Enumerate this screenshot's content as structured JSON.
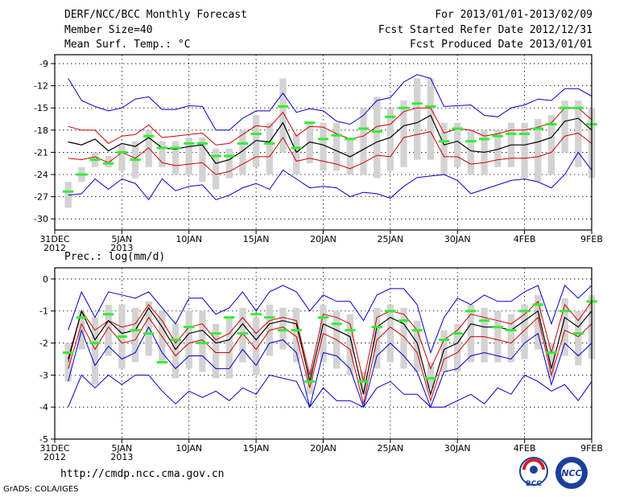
{
  "header": {
    "title": "DERF/NCC/BCC Monthly Forecast",
    "member": "Member Size=40",
    "variable": "Mean Surf. Temp.: °C",
    "period": "For 2013/01/01-2013/02/09",
    "started": "Fcst Started Refer Date 2012/12/31",
    "produced": "Fcst Produced Date 2013/01/01"
  },
  "footer": {
    "url": "http://cmdp.ncc.cma.gov.cn",
    "grads": "GrADS: COLA/IGES",
    "logo1": "BCC",
    "logo2": "NCC"
  },
  "colors": {
    "ensemble_mean": "#000000",
    "inner_band": "#cc0000",
    "outer_band": "#0000cc",
    "box": "#d3d3d3",
    "median": "#33ee33"
  },
  "chart_data": [
    {
      "type": "line",
      "title": "Mean Surf. Temp.: °C",
      "ylim": [
        -31.5,
        -7.8
      ],
      "yticks": [
        -9,
        -12,
        -15,
        -18,
        -21,
        -24,
        -27,
        -30
      ],
      "ytick_labels": [
        "-9",
        "-12",
        "-15",
        "-18",
        "-21",
        "-24",
        "-27",
        "-30"
      ],
      "xlim": [
        0,
        40
      ],
      "xticks": [
        0,
        5,
        10,
        15,
        20,
        25,
        30,
        35,
        40
      ],
      "xtick_labels": [
        "31DEC",
        "5JAN",
        "10JAN",
        "15JAN",
        "20JAN",
        "25JAN",
        "30JAN",
        "4FEB",
        "9FEB"
      ],
      "xtick_sublabels": [
        "2012",
        "2013",
        "",
        "",
        "",
        "",
        "",
        "",
        ""
      ],
      "x": [
        1,
        2,
        3,
        4,
        5,
        6,
        7,
        8,
        9,
        10,
        11,
        12,
        13,
        14,
        15,
        16,
        17,
        18,
        19,
        20,
        21,
        22,
        23,
        24,
        25,
        26,
        27,
        28,
        29,
        30,
        31,
        32,
        33,
        34,
        35,
        36,
        37,
        38,
        39,
        40
      ],
      "series": [
        {
          "name": "outer_high",
          "values": [
            -11.0,
            -14.0,
            -14.8,
            -15.4,
            -15.0,
            -13.8,
            -13.5,
            -15.2,
            -15.2,
            -14.7,
            -14.8,
            -18.0,
            -18.0,
            -16.4,
            -15.4,
            -15.4,
            -13.0,
            -15.6,
            -15.1,
            -15.4,
            -16.8,
            -17.2,
            -16.0,
            -14.0,
            -13.6,
            -11.5,
            -10.5,
            -11.0,
            -14.8,
            -14.7,
            -14.6,
            -16.0,
            -16.2,
            -15.0,
            -14.6,
            -13.8,
            -14.0,
            -12.4,
            -12.4,
            -13.4
          ]
        },
        {
          "name": "inner_high",
          "values": [
            -17.5,
            -18.0,
            -18.0,
            -19.8,
            -18.8,
            -18.6,
            -17.3,
            -19.0,
            -18.8,
            -18.6,
            -18.4,
            -20.0,
            -19.8,
            -18.6,
            -17.4,
            -17.6,
            -15.6,
            -18.8,
            -17.5,
            -17.6,
            -18.5,
            -19.2,
            -18.8,
            -17.5,
            -17.2,
            -15.5,
            -15.0,
            -15.0,
            -18.4,
            -17.8,
            -18.0,
            -18.8,
            -18.5,
            -18.0,
            -18.0,
            -17.6,
            -17.0,
            -15.0,
            -15.0,
            -16.6
          ]
        },
        {
          "name": "mean",
          "values": [
            -19.6,
            -20.0,
            -19.2,
            -20.8,
            -19.8,
            -20.2,
            -19.0,
            -20.4,
            -20.6,
            -20.2,
            -20.0,
            -22.5,
            -22.0,
            -20.8,
            -19.4,
            -19.6,
            -17.0,
            -21.0,
            -19.6,
            -20.0,
            -20.8,
            -21.6,
            -20.6,
            -19.6,
            -19.0,
            -17.4,
            -17.0,
            -16.0,
            -20.0,
            -19.5,
            -20.8,
            -21.0,
            -20.6,
            -20.0,
            -20.0,
            -19.6,
            -19.0,
            -16.8,
            -16.4,
            -18.0
          ]
        },
        {
          "name": "inner_low",
          "values": [
            -21.8,
            -22.0,
            -21.6,
            -22.4,
            -21.0,
            -21.8,
            -20.4,
            -22.4,
            -22.8,
            -22.6,
            -22.4,
            -24.0,
            -23.6,
            -22.6,
            -21.6,
            -21.6,
            -19.0,
            -22.2,
            -21.8,
            -22.2,
            -22.6,
            -23.2,
            -22.4,
            -21.4,
            -21.6,
            -19.0,
            -18.6,
            -18.2,
            -21.6,
            -21.6,
            -22.6,
            -22.4,
            -22.0,
            -21.8,
            -21.8,
            -21.6,
            -21.0,
            -18.8,
            -18.4,
            -19.8
          ]
        },
        {
          "name": "outer_low",
          "values": [
            -26.8,
            -26.6,
            -24.6,
            -26.0,
            -24.6,
            -25.2,
            -27.4,
            -24.6,
            -26.2,
            -25.6,
            -25.4,
            -27.4,
            -26.8,
            -25.8,
            -25.2,
            -26.0,
            -23.4,
            -24.6,
            -25.8,
            -25.6,
            -25.8,
            -27.0,
            -26.4,
            -26.6,
            -27.2,
            -25.6,
            -24.4,
            -24.2,
            -24.0,
            -24.8,
            -26.6,
            -26.0,
            -25.4,
            -24.8,
            -24.6,
            -25.0,
            -25.8,
            -24.0,
            -21.0,
            -23.4
          ]
        }
      ],
      "boxes": {
        "top": [
          -25.0,
          -23.0,
          -21.0,
          -21.5,
          -20.0,
          -19.5,
          -18.0,
          -19.5,
          -19.5,
          -19.0,
          -19.0,
          -20.5,
          -20.5,
          -18.0,
          -16.0,
          -17.0,
          -11.0,
          -18.5,
          -17.0,
          -17.0,
          -17.0,
          -19.0,
          -15.0,
          -13.5,
          -15.0,
          -14.0,
          -11.0,
          -11.0,
          -17.0,
          -17.0,
          -18.0,
          -18.0,
          -18.0,
          -17.0,
          -17.0,
          -16.5,
          -16.0,
          -14.0,
          -14.0,
          -15.0
        ],
        "bottom": [
          -28.5,
          -25.0,
          -23.0,
          -23.0,
          -23.5,
          -24.5,
          -23.0,
          -23.0,
          -24.0,
          -24.0,
          -25.0,
          -26.0,
          -24.5,
          -24.0,
          -23.0,
          -24.0,
          -21.0,
          -24.0,
          -22.5,
          -23.5,
          -23.5,
          -24.0,
          -24.0,
          -24.5,
          -23.5,
          -23.0,
          -22.0,
          -22.0,
          -24.0,
          -23.0,
          -24.0,
          -24.0,
          -23.0,
          -23.0,
          -24.5,
          -25.0,
          -24.0,
          -21.0,
          -23.0,
          -24.5
        ],
        "median": [
          -26.3,
          -24.0,
          -22.0,
          -22.5,
          -21.0,
          -22.0,
          -18.8,
          -20.4,
          -20.4,
          -19.8,
          -19.8,
          -21.5,
          -21.5,
          -19.8,
          -18.5,
          -19.8,
          -14.8,
          -20.4,
          -17.0,
          -19.2,
          -18.7,
          -19.2,
          -17.8,
          -18.2,
          -16.2,
          -15.0,
          -14.4,
          -14.8,
          -19.5,
          -17.8,
          -19.5,
          -19.2,
          -18.8,
          -18.5,
          -18.5,
          -17.8,
          -17.2,
          -15.0,
          -15.0,
          -17.2
        ]
      }
    },
    {
      "type": "line",
      "title": "Prec.: log(mm/d)",
      "ylim": [
        -5,
        0.35
      ],
      "yticks": [
        0,
        -1,
        -2,
        -3,
        -4,
        -5
      ],
      "ytick_labels": [
        "0",
        "-1",
        "-2",
        "-3",
        "-4",
        "-5"
      ],
      "xlim": [
        0,
        40
      ],
      "xticks": [
        0,
        5,
        10,
        15,
        20,
        25,
        30,
        35,
        40
      ],
      "xtick_labels": [
        "31DEC",
        "5JAN",
        "10JAN",
        "15JAN",
        "20JAN",
        "25JAN",
        "30JAN",
        "4FEB",
        "9FEB"
      ],
      "xtick_sublabels": [
        "2012",
        "2013",
        "",
        "",
        "",
        "",
        "",
        "",
        ""
      ],
      "x": [
        1,
        2,
        3,
        4,
        5,
        6,
        7,
        8,
        9,
        10,
        11,
        12,
        13,
        14,
        15,
        16,
        17,
        18,
        19,
        20,
        21,
        22,
        23,
        24,
        25,
        26,
        27,
        28,
        29,
        30,
        31,
        32,
        33,
        34,
        35,
        36,
        37,
        38,
        39,
        40
      ],
      "series": [
        {
          "name": "outer_high",
          "values": [
            -1.6,
            -0.4,
            -1.2,
            -0.4,
            -0.5,
            -0.6,
            -0.4,
            -0.9,
            -1.4,
            -0.6,
            -0.6,
            -1.1,
            -0.9,
            -0.4,
            -1.0,
            -0.4,
            -0.2,
            -0.4,
            -1.0,
            -0.5,
            -0.7,
            -0.7,
            -1.3,
            -0.5,
            -0.3,
            -0.3,
            -0.8,
            -2.3,
            -1.2,
            -0.6,
            -0.8,
            -0.5,
            -0.7,
            -0.7,
            -0.4,
            -0.2,
            -1.4,
            -0.2,
            -0.6,
            -0.2
          ]
        },
        {
          "name": "inner_high",
          "values": [
            -2.6,
            -1.0,
            -1.6,
            -1.3,
            -1.5,
            -1.4,
            -0.8,
            -1.3,
            -2.0,
            -1.5,
            -1.4,
            -1.9,
            -1.7,
            -1.2,
            -1.7,
            -1.3,
            -1.2,
            -1.3,
            -3.0,
            -1.1,
            -1.2,
            -1.4,
            -3.2,
            -1.2,
            -1.0,
            -1.1,
            -1.6,
            -2.8,
            -1.9,
            -1.6,
            -1.1,
            -1.2,
            -1.3,
            -1.4,
            -1.1,
            -0.7,
            -2.3,
            -0.8,
            -1.3,
            -0.7
          ]
        },
        {
          "name": "mean",
          "values": [
            -2.5,
            -1.0,
            -1.9,
            -1.3,
            -1.7,
            -1.6,
            -0.9,
            -1.5,
            -2.2,
            -1.7,
            -1.6,
            -2.0,
            -1.9,
            -1.4,
            -1.9,
            -1.4,
            -1.3,
            -1.4,
            -3.2,
            -1.4,
            -1.6,
            -1.8,
            -3.6,
            -1.5,
            -1.2,
            -1.4,
            -2.0,
            -3.6,
            -2.2,
            -2.0,
            -1.4,
            -1.5,
            -1.5,
            -1.6,
            -1.3,
            -1.0,
            -2.8,
            -1.2,
            -1.5,
            -1.0
          ]
        },
        {
          "name": "inner_low",
          "values": [
            -2.8,
            -1.4,
            -2.2,
            -1.5,
            -2.0,
            -1.9,
            -1.2,
            -1.8,
            -2.4,
            -2.0,
            -1.9,
            -2.3,
            -2.3,
            -1.7,
            -2.2,
            -1.6,
            -1.5,
            -1.8,
            -3.4,
            -1.7,
            -1.9,
            -2.2,
            -3.9,
            -1.9,
            -1.5,
            -1.8,
            -2.3,
            -3.8,
            -2.5,
            -2.3,
            -1.8,
            -1.8,
            -1.9,
            -2.0,
            -1.6,
            -1.2,
            -3.0,
            -1.6,
            -1.8,
            -1.4
          ]
        },
        {
          "name": "outer_low",
          "values": [
            -3.2,
            -1.6,
            -2.7,
            -2.1,
            -2.5,
            -2.3,
            -1.5,
            -2.3,
            -2.8,
            -2.4,
            -2.4,
            -2.8,
            -2.8,
            -2.2,
            -2.7,
            -2.0,
            -1.9,
            -2.3,
            -4.0,
            -2.3,
            -2.4,
            -2.8,
            -4.0,
            -2.4,
            -2.0,
            -2.4,
            -2.9,
            -4.0,
            -2.9,
            -2.8,
            -2.4,
            -2.3,
            -2.4,
            -2.5,
            -2.0,
            -1.7,
            -3.3,
            -2.0,
            -2.4,
            -2.0
          ]
        },
        {
          "name": "outer_min",
          "values": [
            -4.0,
            -3.0,
            -3.4,
            -3.0,
            -3.3,
            -3.0,
            -3.0,
            -3.5,
            -3.9,
            -3.5,
            -3.7,
            -3.5,
            -3.8,
            -3.4,
            -3.6,
            -3.0,
            -3.1,
            -3.2,
            -4.0,
            -3.4,
            -3.8,
            -3.8,
            -4.0,
            -3.4,
            -3.2,
            -3.6,
            -3.6,
            -4.0,
            -4.0,
            -3.8,
            -3.6,
            -3.9,
            -3.4,
            -3.6,
            -3.0,
            -3.2,
            -3.5,
            -3.3,
            -3.8,
            -3.2
          ]
        }
      ],
      "boxes": {
        "top": [
          -2.0,
          -1.0,
          -1.2,
          -0.8,
          -0.8,
          -0.9,
          -0.7,
          -1.0,
          -1.4,
          -1.0,
          -1.0,
          -1.4,
          -1.2,
          -0.9,
          -1.2,
          -0.8,
          -0.9,
          -0.9,
          -2.8,
          -0.8,
          -1.0,
          -1.1,
          -2.9,
          -0.9,
          -0.8,
          -0.9,
          -1.3,
          -2.6,
          -1.6,
          -1.4,
          -0.8,
          -0.9,
          -1.0,
          -1.1,
          -0.8,
          -0.5,
          -2.0,
          -0.6,
          -1.0,
          -0.5
        ],
        "bottom": [
          -3.2,
          -2.2,
          -3.3,
          -2.4,
          -2.8,
          -2.6,
          -2.4,
          -2.6,
          -3.1,
          -2.8,
          -2.9,
          -3.1,
          -3.1,
          -2.6,
          -3.0,
          -2.4,
          -2.2,
          -2.6,
          -3.6,
          -2.6,
          -2.8,
          -3.0,
          -3.6,
          -2.8,
          -2.6,
          -2.8,
          -2.9,
          -3.4,
          -2.9,
          -2.9,
          -2.6,
          -2.6,
          -2.6,
          -2.6,
          -2.5,
          -2.2,
          -3.1,
          -2.4,
          -2.7,
          -2.5
        ],
        "median": [
          -2.3,
          -1.2,
          -2.0,
          -1.1,
          -1.8,
          -1.6,
          -1.7,
          -2.6,
          -1.9,
          -1.5,
          -2.0,
          -1.7,
          -1.2,
          -1.7,
          -1.1,
          -1.2,
          -1.6,
          -1.6,
          -3.2,
          -1.2,
          -1.4,
          -1.6,
          -3.2,
          -1.5,
          -1.0,
          -1.3,
          -1.6,
          -3.1,
          -1.9,
          -1.7,
          -1.0,
          -1.3,
          -1.5,
          -1.6,
          -1.0,
          -0.8,
          -2.3,
          -1.0,
          -1.7,
          -0.7
        ]
      }
    }
  ]
}
